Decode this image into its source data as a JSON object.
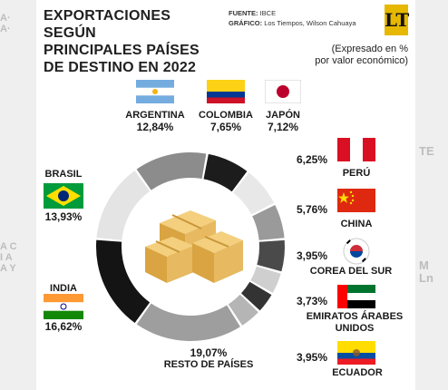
{
  "header": {
    "title_lines": [
      "EXPORTACIONES SEGÚN",
      "PRINCIPALES PAÍSES",
      "DE DESTINO EN 2022"
    ],
    "source_label": "FUENTE:",
    "source_value": "IBCE",
    "graphic_label": "GRÁFICO:",
    "graphic_value": "Los Tiempos, Wilson Cahuaya",
    "note_lines": [
      "(Expresado en %",
      "por valor económico)"
    ]
  },
  "chart_data": {
    "type": "pie",
    "title": "EXPORTACIONES SEGÚN PRINCIPALES PAÍSES DE DESTINO EN 2022",
    "unit": "%",
    "slices": [
      {
        "label": "ARGENTINA",
        "value": 12.84,
        "display": "12,84%",
        "color": "#8c8c8c"
      },
      {
        "label": "COLOMBIA",
        "value": 7.65,
        "display": "7,65%",
        "color": "#1c1c1c"
      },
      {
        "label": "JAPÓN",
        "value": 7.12,
        "display": "7,12%",
        "color": "#e8e8e8"
      },
      {
        "label": "PERÚ",
        "value": 6.25,
        "display": "6,25%",
        "color": "#9a9a9a"
      },
      {
        "label": "CHINA",
        "value": 5.76,
        "display": "5,76%",
        "color": "#4a4a4a"
      },
      {
        "label": "COREA DEL SUR",
        "value": 3.95,
        "display": "3,95%",
        "color": "#cfcfcf"
      },
      {
        "label": "EMIRATOS ÁRABES UNIDOS",
        "value": 3.73,
        "display": "3,73%",
        "color": "#333333"
      },
      {
        "label": "ECUADOR",
        "value": 3.95,
        "display": "3,95%",
        "color": "#b5b5b5"
      },
      {
        "label": "RESTO DE PAÍSES",
        "value": 19.07,
        "display": "19,07%",
        "color": "#9e9e9e"
      },
      {
        "label": "INDIA",
        "value": 16.62,
        "display": "16,62%",
        "color": "#141414"
      },
      {
        "label": "BRASIL",
        "value": 13.93,
        "display": "13,93%",
        "color": "#e4e4e4"
      }
    ],
    "labels": {
      "argentina": {
        "name": "ARGENTINA",
        "pct": "12,84%"
      },
      "colombia": {
        "name": "COLOMBIA",
        "pct": "7,65%"
      },
      "japon": {
        "name": "JAPÓN",
        "pct": "7,12%"
      },
      "peru": {
        "name": "PERÚ",
        "pct": "6,25%"
      },
      "china": {
        "name": "CHINA",
        "pct": "5,76%"
      },
      "corea": {
        "name": "COREA DEL SUR",
        "pct": "3,95%"
      },
      "emiratos": {
        "name_lines": [
          "EMIRATOS ÁRABES",
          "UNIDOS"
        ],
        "pct": "3,73%"
      },
      "ecuador": {
        "name": "ECUADOR",
        "pct": "3,95%"
      },
      "resto": {
        "name": "RESTO DE PAÍSES",
        "pct": "19,07%"
      },
      "india": {
        "name": "INDIA",
        "pct": "16,62%"
      },
      "brasil": {
        "name": "BRASIL",
        "pct": "13,93%"
      }
    }
  }
}
